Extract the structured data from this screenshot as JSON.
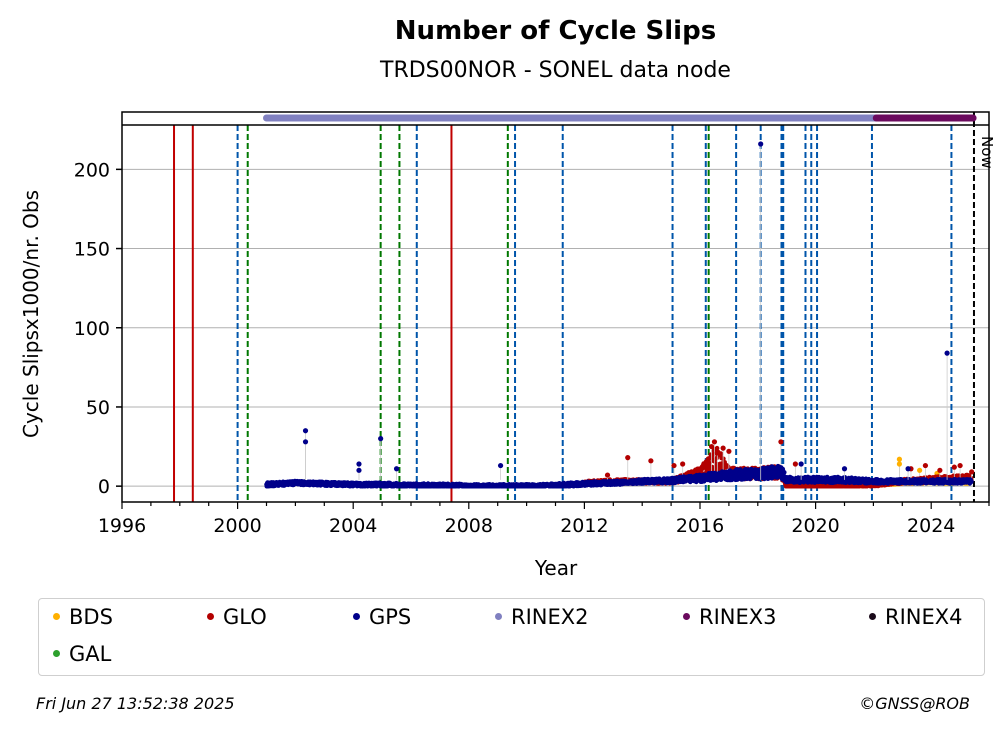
{
  "chart_data": {
    "type": "scatter",
    "title": "Number of Cycle Slips",
    "subtitle": "TRDS00NOR - SONEL data node",
    "xlabel": "Year",
    "ylabel": "Cycle Slipsx1000/nr. Obs",
    "xlim": [
      1996.0,
      2026.0
    ],
    "ylim": [
      -10,
      228
    ],
    "x_ticks": [
      1996,
      2000,
      2004,
      2008,
      2012,
      2016,
      2020,
      2024
    ],
    "y_ticks": [
      0,
      50,
      100,
      150,
      200
    ],
    "grid": "horizontal",
    "now_label": "Now",
    "now_x": 2025.48,
    "red_solid_lines": [
      1997.8,
      1998.45,
      2007.4
    ],
    "green_dashed_lines": [
      2000.35,
      2004.95,
      2005.6,
      2009.35,
      2016.3
    ],
    "blue_dashed_lines": [
      2000.0,
      2006.2,
      2009.6,
      2011.25,
      2015.05,
      2016.2,
      2017.25,
      2018.1,
      2018.82,
      2018.88,
      2019.65,
      2019.85,
      2020.05,
      2021.95,
      2024.7
    ],
    "rinex_bars": [
      {
        "name": "RINEX2",
        "start": 2001.0,
        "end": 2022.1,
        "color": "#8080c0"
      },
      {
        "name": "RINEX3",
        "start": 2022.1,
        "end": 2025.45,
        "color": "#6b0a5e"
      }
    ],
    "series": [
      {
        "name": "GPS",
        "color": "#00008b",
        "baseline": [
          [
            2001.0,
            1
          ],
          [
            2002.0,
            2
          ],
          [
            2003.0,
            1.5
          ],
          [
            2004.0,
            1
          ],
          [
            2005.0,
            1
          ],
          [
            2006.0,
            0.5
          ],
          [
            2007.0,
            0.5
          ],
          [
            2008.0,
            0
          ],
          [
            2009.0,
            0
          ],
          [
            2010.0,
            0
          ],
          [
            2011.0,
            0.5
          ],
          [
            2012.0,
            1.5
          ],
          [
            2013.0,
            2
          ],
          [
            2014.0,
            3
          ],
          [
            2015.0,
            3.5
          ],
          [
            2016.0,
            5
          ],
          [
            2017.0,
            7
          ],
          [
            2018.0,
            8
          ],
          [
            2018.8,
            9
          ],
          [
            2019.0,
            4
          ],
          [
            2020.0,
            4
          ],
          [
            2021.0,
            4
          ],
          [
            2022.0,
            3
          ],
          [
            2023.0,
            3
          ],
          [
            2024.0,
            3
          ],
          [
            2025.4,
            3
          ]
        ],
        "outliers": [
          [
            2002.35,
            35
          ],
          [
            2002.35,
            28
          ],
          [
            2004.2,
            14
          ],
          [
            2004.2,
            10
          ],
          [
            2004.95,
            30
          ],
          [
            2005.5,
            11
          ],
          [
            2009.1,
            13
          ],
          [
            2018.1,
            216
          ],
          [
            2019.5,
            14
          ],
          [
            2024.55,
            84
          ],
          [
            2021.0,
            11
          ],
          [
            2023.2,
            11
          ]
        ]
      },
      {
        "name": "GLO",
        "color": "#b30000",
        "baseline": [
          [
            2012.0,
            2
          ],
          [
            2013.0,
            3
          ],
          [
            2014.0,
            3
          ],
          [
            2015.0,
            3
          ],
          [
            2016.0,
            8
          ],
          [
            2016.6,
            18
          ],
          [
            2017.0,
            8
          ],
          [
            2018.0,
            8
          ],
          [
            2018.8,
            9
          ],
          [
            2019.0,
            0
          ],
          [
            2020.0,
            0
          ],
          [
            2021.0,
            0
          ],
          [
            2022.0,
            1
          ],
          [
            2023.0,
            3
          ],
          [
            2024.0,
            4
          ],
          [
            2025.4,
            5
          ]
        ],
        "outliers": [
          [
            2012.8,
            7
          ],
          [
            2013.5,
            18
          ],
          [
            2014.3,
            16
          ],
          [
            2015.1,
            13
          ],
          [
            2015.4,
            14
          ],
          [
            2016.4,
            25
          ],
          [
            2016.5,
            28
          ],
          [
            2016.6,
            21
          ],
          [
            2016.8,
            24
          ],
          [
            2017.0,
            22
          ],
          [
            2018.8,
            28
          ],
          [
            2019.3,
            14
          ],
          [
            2023.3,
            11
          ],
          [
            2023.8,
            13
          ],
          [
            2024.3,
            10
          ],
          [
            2024.8,
            12
          ],
          [
            2025.0,
            13
          ],
          [
            2025.4,
            9
          ]
        ]
      },
      {
        "name": "BDS",
        "color": "#ffb000",
        "baseline": [
          [
            2021.5,
            1
          ],
          [
            2022.5,
            2
          ],
          [
            2023.5,
            3
          ],
          [
            2024.5,
            3
          ],
          [
            2025.4,
            3
          ]
        ],
        "outliers": [
          [
            2022.9,
            17
          ],
          [
            2022.9,
            14
          ],
          [
            2023.6,
            10
          ],
          [
            2024.2,
            8
          ]
        ]
      },
      {
        "name": "GAL",
        "color": "#2ca02c",
        "baseline": [],
        "outliers": []
      }
    ],
    "legend": [
      {
        "name": "BDS",
        "color": "#ffb000"
      },
      {
        "name": "GLO",
        "color": "#b30000"
      },
      {
        "name": "GPS",
        "color": "#00008b"
      },
      {
        "name": "RINEX2",
        "color": "#8080c0"
      },
      {
        "name": "RINEX3",
        "color": "#6b0a5e"
      },
      {
        "name": "RINEX4",
        "color": "#1a0a1a"
      },
      {
        "name": "GAL",
        "color": "#2ca02c"
      }
    ]
  },
  "footer": {
    "timestamp": "Fri Jun 27 13:52:38 2025",
    "copyright": "©GNSS@ROB"
  }
}
